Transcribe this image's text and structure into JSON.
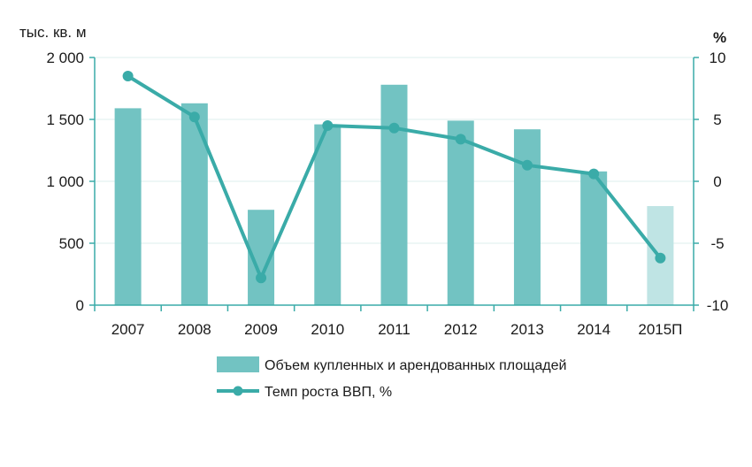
{
  "chart_data": {
    "type": "bar+line",
    "categories": [
      "2007",
      "2008",
      "2009",
      "2010",
      "2011",
      "2012",
      "2013",
      "2014",
      "2015П"
    ],
    "left_axis": {
      "unit_label": "тыс. кв. м",
      "range": [
        0,
        2000
      ],
      "ticks": [
        0,
        500,
        1000,
        1500,
        2000
      ],
      "tick_labels": [
        "0",
        "500",
        "1 000",
        "1 500",
        "2 000"
      ]
    },
    "right_axis": {
      "unit_label": "%",
      "range": [
        -10,
        10
      ],
      "ticks": [
        -10,
        -5,
        0,
        5,
        10
      ],
      "tick_labels": [
        "-10",
        "-5",
        "0",
        "5",
        "10"
      ]
    },
    "series": [
      {
        "name": "Объем купленных и арендованных площадей",
        "type": "bar",
        "axis": "left",
        "values": [
          1590,
          1630,
          770,
          1460,
          1780,
          1490,
          1420,
          1080,
          800
        ],
        "color": "#72c3c2",
        "forecast_color": "#bfe4e4"
      },
      {
        "name": "Темп роста ВВП, %",
        "type": "line",
        "axis": "right",
        "values": [
          8.5,
          5.2,
          -7.8,
          4.5,
          4.3,
          3.4,
          1.3,
          0.6,
          -6.2
        ],
        "color": "#3aaba8"
      }
    ],
    "grid": "horizontal",
    "legend_position": "bottom"
  }
}
